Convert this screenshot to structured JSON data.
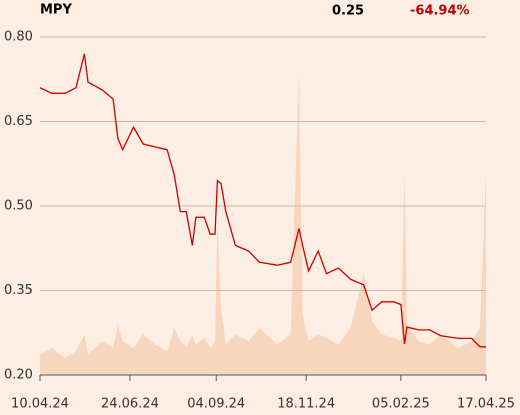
{
  "chart_data": {
    "type": "line",
    "title": "MPY",
    "price": 0.25,
    "change": "-64.94%",
    "x": [
      "10.04.24",
      "20.04.24",
      "01.05.24",
      "10.05.24",
      "17.05.24",
      "20.05.24",
      "01.06.24",
      "10.06.24",
      "14.06.24",
      "18.06.24",
      "27.06.24",
      "05.07.24",
      "15.07.24",
      "25.07.24",
      "31.07.24",
      "05.08.24",
      "10.08.24",
      "15.08.24",
      "18.08.24",
      "25.08.24",
      "30.08.24",
      "03.09.24",
      "05.09.24",
      "08.09.24",
      "12.09.24",
      "20.09.24",
      "01.10.24",
      "10.10.24",
      "25.10.24",
      "05.11.24",
      "12.11.24",
      "15.11.24",
      "20.11.24",
      "28.11.24",
      "05.12.24",
      "15.12.24",
      "25.12.24",
      "05.01.25",
      "12.01.25",
      "20.01.25",
      "30.01.25",
      "05.02.25",
      "08.02.25",
      "10.02.25",
      "20.02.25",
      "01.03.25",
      "10.03.25",
      "25.03.25",
      "05.04.25",
      "12.04.25",
      "17.04.25"
    ],
    "series": [
      {
        "color": "#cc0000",
        "values": [
          0.71,
          0.7,
          0.7,
          0.71,
          0.77,
          0.72,
          0.706,
          0.69,
          0.62,
          0.6,
          0.64,
          0.61,
          0.605,
          0.6,
          0.555,
          0.49,
          0.49,
          0.43,
          0.48,
          0.48,
          0.45,
          0.45,
          0.545,
          0.54,
          0.49,
          0.43,
          0.42,
          0.4,
          0.395,
          0.4,
          0.46,
          0.43,
          0.385,
          0.42,
          0.38,
          0.39,
          0.37,
          0.36,
          0.315,
          0.33,
          0.33,
          0.325,
          0.255,
          0.285,
          0.28,
          0.28,
          0.27,
          0.265,
          0.265,
          0.25,
          0.25
        ]
      },
      {
        "color": "#f8d6bd",
        "axis": "y2",
        "values": [
          6,
          8,
          5,
          7,
          12,
          6,
          10,
          8,
          15,
          10,
          8,
          12,
          9,
          7,
          14,
          10,
          8,
          12,
          9,
          11,
          8,
          10,
          45,
          20,
          9,
          12,
          10,
          14,
          9,
          12,
          90,
          18,
          10,
          12,
          11,
          9,
          14,
          30,
          16,
          12,
          11,
          10,
          60,
          15,
          10,
          9,
          12,
          8,
          10,
          14,
          60
        ]
      }
    ],
    "xlim": [
      "10.04.24",
      "17.04.25"
    ],
    "xticks": [
      "10.04.24",
      "24.06.24",
      "04.09.24",
      "18.11.24",
      "05.02.25",
      "17.04.25"
    ],
    "ylim": [
      0.2,
      0.8
    ],
    "yticks": [
      {
        "value": 0.2,
        "label": "0.20"
      },
      0.35,
      {
        "value": 0.5,
        "label": "0.50"
      },
      0.65,
      {
        "value": 0.8,
        "label": "0.80"
      }
    ],
    "y2lim": [
      0,
      100
    ],
    "grid": true
  }
}
